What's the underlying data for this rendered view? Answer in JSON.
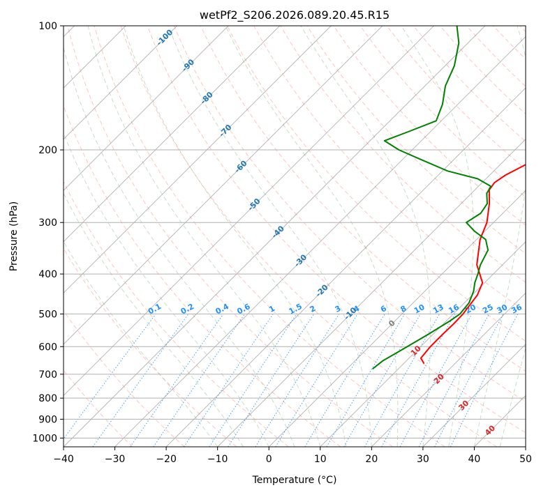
{
  "chart_data": {
    "type": "line",
    "subtype": "skew-t log-p diagram",
    "title": "wetPf2_S206.2026.089.20.45.R15",
    "xlabel": "Temperature (°C)",
    "ylabel": "Pressure (hPa)",
    "xlim": [
      -40,
      50
    ],
    "ylim": [
      1050,
      100
    ],
    "y_scale": "log",
    "x_ticks": [
      -40,
      -30,
      -20,
      -10,
      0,
      10,
      20,
      30,
      40,
      50
    ],
    "x_tick_labels": [
      "−40",
      "−30",
      "−20",
      "−10",
      "0",
      "10",
      "20",
      "30",
      "40",
      "50"
    ],
    "y_ticks": [
      100,
      200,
      300,
      400,
      500,
      600,
      700,
      800,
      900,
      1000
    ],
    "y_tick_labels": [
      "100",
      "200",
      "300",
      "400",
      "500",
      "600",
      "700",
      "800",
      "900",
      "1000"
    ],
    "grid": true,
    "series": [
      {
        "role": "temperature",
        "color": "#ff0000",
        "points": [
          [
            660,
            14.0
          ],
          [
            640,
            12.3
          ],
          [
            600,
            11.9
          ],
          [
            560,
            11.9
          ],
          [
            530,
            12.0
          ],
          [
            500,
            11.9
          ],
          [
            450,
            11.0
          ],
          [
            420,
            9.6
          ],
          [
            380,
            5.0
          ],
          [
            330,
            0.7
          ],
          [
            300,
            -1.3
          ],
          [
            270,
            -4.5
          ],
          [
            250,
            -7.2
          ],
          [
            240,
            -7.6
          ],
          [
            230,
            -6.9
          ],
          [
            215,
            -4.7
          ],
          [
            205,
            -1.5
          ],
          [
            195,
            -1.3
          ],
          [
            180,
            -2.4
          ],
          [
            160,
            -5.0
          ],
          [
            140,
            -9.0
          ],
          [
            120,
            -14.0
          ],
          [
            110,
            -17.6
          ],
          [
            100,
            -20.6
          ]
        ]
      },
      {
        "role": "dewpoint",
        "color": "#008000",
        "points": [
          [
            680,
            5.0
          ],
          [
            650,
            5.4
          ],
          [
            610,
            7.0
          ],
          [
            560,
            9.1
          ],
          [
            520,
            10.7
          ],
          [
            500,
            11.3
          ],
          [
            470,
            10.9
          ],
          [
            440,
            9.5
          ],
          [
            420,
            8.1
          ],
          [
            400,
            7.0
          ],
          [
            380,
            5.7
          ],
          [
            350,
            4.3
          ],
          [
            330,
            1.8
          ],
          [
            315,
            -2.0
          ],
          [
            300,
            -5.3
          ],
          [
            285,
            -4.3
          ],
          [
            270,
            -4.9
          ],
          [
            255,
            -7.0
          ],
          [
            245,
            -7.6
          ],
          [
            235,
            -11.6
          ],
          [
            225,
            -19.0
          ],
          [
            210,
            -27.0
          ],
          [
            200,
            -32.6
          ],
          [
            190,
            -37.2
          ],
          [
            180,
            -34.1
          ],
          [
            170,
            -31.0
          ],
          [
            155,
            -33.0
          ],
          [
            140,
            -36.0
          ],
          [
            125,
            -38.2
          ],
          [
            110,
            -41.8
          ],
          [
            100,
            -45.5
          ]
        ]
      }
    ],
    "background_lines": {
      "dry_adiabats": {
        "color": "#fa8072",
        "style": "dashed"
      },
      "moist_adiabats": {
        "color": "#8fbc8f",
        "style": "dashed"
      },
      "mixing_ratio_lines": {
        "color": "#1e90ff",
        "style": "dotted"
      },
      "isotherms_skewed": {
        "color": "#808080",
        "style": "solid"
      },
      "sat_curve": {
        "color": "#d2b48c",
        "style": "dashed"
      }
    },
    "mixing_ratio_labels": [
      "0.1",
      "0.2",
      "0.4",
      "0.6",
      "1",
      "1.5",
      "2",
      "3",
      "4",
      "6",
      "8",
      "10",
      "13",
      "16",
      "20",
      "25",
      "30",
      "36"
    ],
    "isotherm_labels_blue": [
      "-100",
      "-90",
      "-80",
      "-70",
      "-60",
      "-50",
      "-40",
      "-30",
      "-20",
      "-10"
    ],
    "isotherm_labels_red": [
      "10",
      "20",
      "30",
      "40"
    ],
    "isotherm_label_zero": "0"
  }
}
